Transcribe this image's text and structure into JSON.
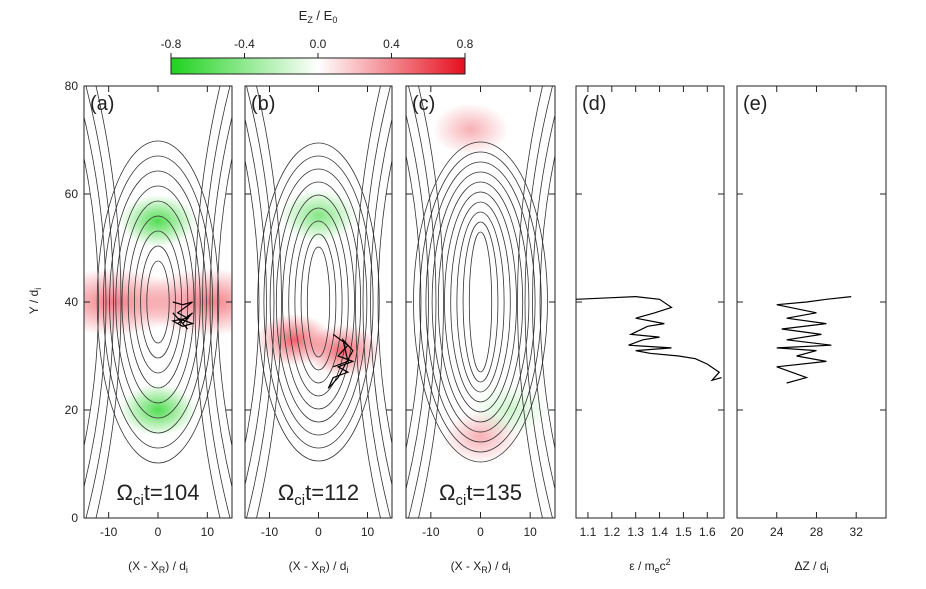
{
  "colorbar": {
    "label_main": "E",
    "label_sub": "Z",
    "label_rest": " / E",
    "label_sub2": "0",
    "ticks": [
      "-0.8",
      "-0.4",
      "0.0",
      "0.4",
      "0.8"
    ],
    "range": [
      -0.8,
      0.8
    ],
    "colors": {
      "negative": "#1fd21f",
      "zero": "#ffffff",
      "positive": "#e60f1e"
    }
  },
  "y_axis": {
    "label": "Y / d",
    "label_sub": "i",
    "ticks": [
      "0",
      "20",
      "40",
      "60",
      "80"
    ],
    "range": [
      0,
      80
    ]
  },
  "chart_data": [
    {
      "type": "heatmap",
      "panel": "(a)",
      "time_label": {
        "prefix": "Ω",
        "sub": "ci",
        "suffix": "t=104"
      },
      "xlabel": {
        "pre": "(X - X",
        "sub": "R",
        "post": ") / d",
        "sub2": "i"
      },
      "xticks": [
        "-10",
        "0",
        "10"
      ],
      "xlim": [
        -15,
        15
      ],
      "ylim": [
        0,
        80
      ],
      "x_range": [
        -15,
        15
      ],
      "y_range": [
        0,
        80
      ],
      "field_features": [
        {
          "x": 0,
          "y": 55,
          "value": -0.7
        },
        {
          "x": 0,
          "y": 20,
          "value": -0.7
        },
        {
          "x": -9,
          "y": 40,
          "value": 0.5
        },
        {
          "x": 10,
          "y": 40,
          "value": 0.5
        }
      ],
      "trajectory": [
        [
          3,
          40
        ],
        [
          5,
          39.5
        ],
        [
          7,
          40
        ],
        [
          4,
          38
        ],
        [
          6,
          37
        ],
        [
          3,
          36.5
        ],
        [
          5,
          35.5
        ],
        [
          7,
          36
        ],
        [
          4,
          37
        ],
        [
          6,
          35
        ],
        [
          3,
          38
        ],
        [
          5,
          36
        ],
        [
          7,
          38
        ],
        [
          4,
          36
        ]
      ]
    },
    {
      "type": "heatmap",
      "panel": "(b)",
      "time_label": {
        "prefix": "Ω",
        "sub": "ci",
        "suffix": "t=112"
      },
      "xlabel": {
        "pre": "(X - X",
        "sub": "R",
        "post": ") / d",
        "sub2": "i"
      },
      "xticks": [
        "-10",
        "0",
        "10"
      ],
      "xlim": [
        -15,
        15
      ],
      "ylim": [
        0,
        80
      ],
      "x_range": [
        -15,
        15
      ],
      "y_range": [
        0,
        80
      ],
      "field_features": [
        {
          "x": 0,
          "y": 56,
          "value": -0.5
        },
        {
          "x": -5,
          "y": 33,
          "value": 0.6
        },
        {
          "x": 5,
          "y": 31,
          "value": 0.6
        }
      ],
      "trajectory": [
        [
          3,
          34
        ],
        [
          6,
          32
        ],
        [
          4,
          30
        ],
        [
          7,
          29
        ],
        [
          4,
          28
        ],
        [
          6,
          27
        ],
        [
          3,
          26
        ],
        [
          2,
          24
        ],
        [
          4,
          26
        ],
        [
          7,
          31
        ],
        [
          5,
          33
        ],
        [
          6,
          29
        ],
        [
          3,
          28
        ]
      ]
    },
    {
      "type": "heatmap",
      "panel": "(c)",
      "time_label": {
        "prefix": "Ω",
        "sub": "ci",
        "suffix": "t=135"
      },
      "xlabel": {
        "pre": "(X - X",
        "sub": "R",
        "post": ") / d",
        "sub2": "i"
      },
      "xticks": [
        "-10",
        "0",
        "10"
      ],
      "xlim": [
        -15,
        15
      ],
      "ylim": [
        0,
        80
      ],
      "x_range": [
        -15,
        15
      ],
      "y_range": [
        0,
        80
      ],
      "field_features": [
        {
          "x": -2,
          "y": 72,
          "value": 0.3
        },
        {
          "x": 0,
          "y": 15,
          "value": 0.3
        },
        {
          "x": 6,
          "y": 20,
          "value": -0.2
        }
      ],
      "trajectory": []
    },
    {
      "type": "line",
      "panel": "(d)",
      "xlabel": {
        "pre": "ε / m",
        "sub": "e",
        "post": "c",
        "sup": "2"
      },
      "xticks": [
        "1.1",
        "1.2",
        "1.3",
        "1.4",
        "1.5",
        "1.6"
      ],
      "xlim": [
        1.05,
        1.67
      ],
      "ylim": [
        0,
        80
      ],
      "x": [
        1.05,
        1.2,
        1.3,
        1.4,
        1.45,
        1.38,
        1.3,
        1.42,
        1.35,
        1.28,
        1.4,
        1.33,
        1.27,
        1.45,
        1.3,
        1.36,
        1.48,
        1.55,
        1.6,
        1.65,
        1.62,
        1.66
      ],
      "y": [
        40.5,
        40.8,
        41,
        40.5,
        39,
        38,
        37,
        36,
        35.5,
        34,
        33.5,
        33,
        32,
        31.5,
        31,
        30.5,
        30,
        29.5,
        28.5,
        27,
        25.5,
        26
      ]
    },
    {
      "type": "line",
      "panel": "(e)",
      "xlabel": {
        "pre": "ΔZ / d",
        "sub": "i"
      },
      "xticks": [
        "20",
        "24",
        "28",
        "32"
      ],
      "xlim": [
        20,
        35
      ],
      "ylim": [
        0,
        80
      ],
      "x": [
        31.5,
        29,
        27,
        24,
        28,
        25,
        29,
        24.5,
        28.5,
        25,
        29.5,
        24,
        28,
        26,
        29,
        24,
        27,
        25
      ],
      "y": [
        41,
        40.5,
        40,
        39.5,
        38,
        37,
        36,
        35,
        34,
        33,
        32,
        31.5,
        31,
        30,
        29,
        28,
        26,
        25
      ]
    }
  ]
}
